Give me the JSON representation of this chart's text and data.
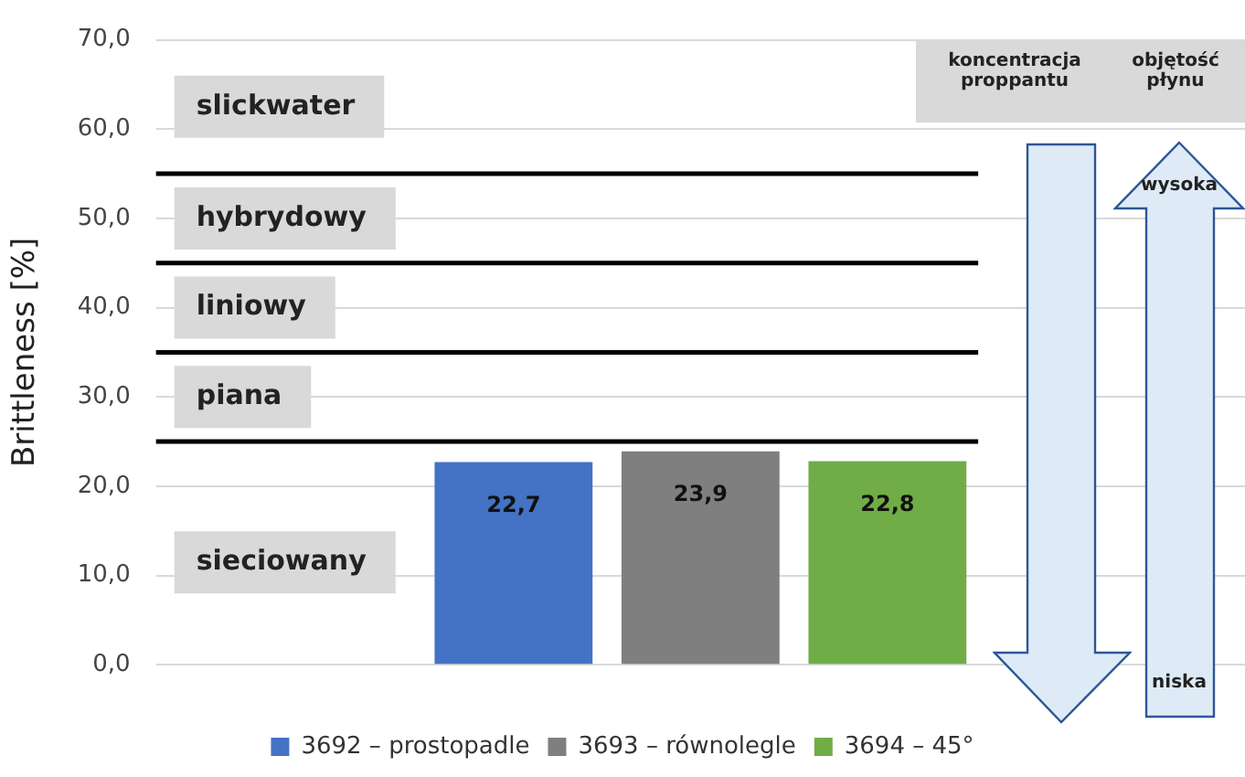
{
  "chart_data": {
    "type": "bar",
    "ylabel": "Brittleness [%]",
    "categories": [
      null
    ],
    "series": [
      {
        "name": "3692 – prostopadle",
        "color": "#4472c4",
        "values": [
          22.7
        ],
        "value_labels": [
          "22,7"
        ]
      },
      {
        "name": "3693 – równolegle",
        "color": "#7f7f7f",
        "values": [
          23.9
        ],
        "value_labels": [
          "23,9"
        ]
      },
      {
        "name": "3694 – 45°",
        "color": "#70ad47",
        "values": [
          22.8
        ],
        "value_labels": [
          "22,8"
        ]
      }
    ],
    "ylim": [
      0,
      70
    ],
    "yticks": [
      {
        "value": 0,
        "label": "0,0"
      },
      {
        "value": 10,
        "label": "10,0"
      },
      {
        "value": 20,
        "label": "20,0"
      },
      {
        "value": 30,
        "label": "30,0"
      },
      {
        "value": 40,
        "label": "40,0"
      },
      {
        "value": 50,
        "label": "50,0"
      },
      {
        "value": 60,
        "label": "60,0"
      },
      {
        "value": 70,
        "label": "70,0"
      }
    ],
    "grid": "y",
    "legend": "bottom",
    "ref_lines": [
      {
        "axis": "y",
        "value": 25,
        "color": "#000000"
      },
      {
        "axis": "y",
        "value": 35,
        "color": "#000000"
      },
      {
        "axis": "y",
        "value": 45,
        "color": "#000000"
      },
      {
        "axis": "y",
        "value": 55,
        "color": "#000000"
      }
    ],
    "annotations": [
      "slickwater",
      "hybrydowy",
      "liniowy",
      "piana",
      "sieciowany",
      "koncentracja proppantu",
      "objętość płynu",
      "wysoka",
      "niska"
    ]
  }
}
